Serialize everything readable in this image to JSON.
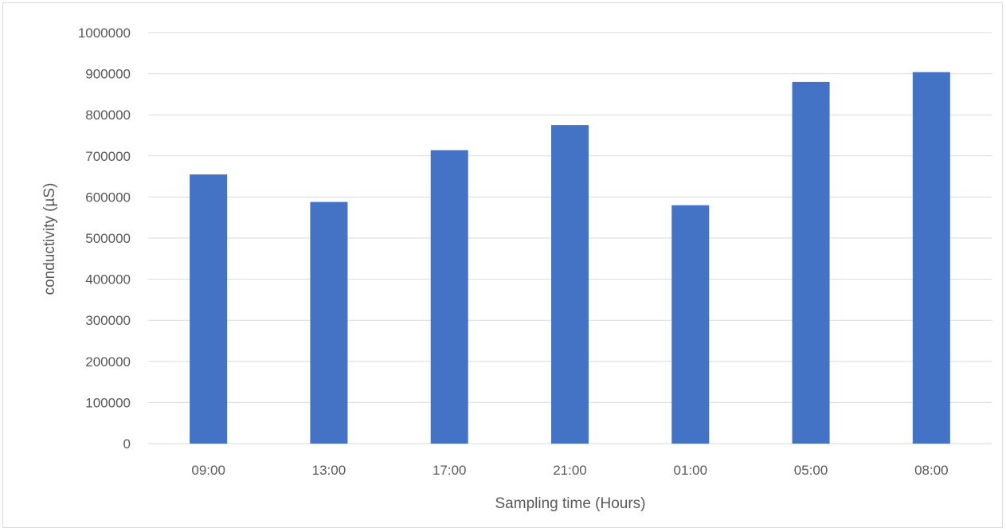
{
  "chart_data": {
    "type": "bar",
    "title": "",
    "xlabel": "Sampling time (Hours)",
    "ylabel": "conductivity (µS)",
    "categories": [
      "09:00",
      "13:00",
      "17:00",
      "21:00",
      "01:00",
      "05:00",
      "08:00"
    ],
    "values": [
      655000,
      588000,
      714000,
      775000,
      580000,
      880000,
      904000
    ],
    "ylim": [
      0,
      1000000
    ],
    "yticks": [
      "0",
      "100000",
      "200000",
      "300000",
      "400000",
      "500000",
      "600000",
      "700000",
      "800000",
      "900000",
      "1000000"
    ],
    "grid": true,
    "legend": "none",
    "colors": {
      "bar": "#4472C4",
      "grid": "#d9d9d9",
      "text": "#595959"
    }
  }
}
